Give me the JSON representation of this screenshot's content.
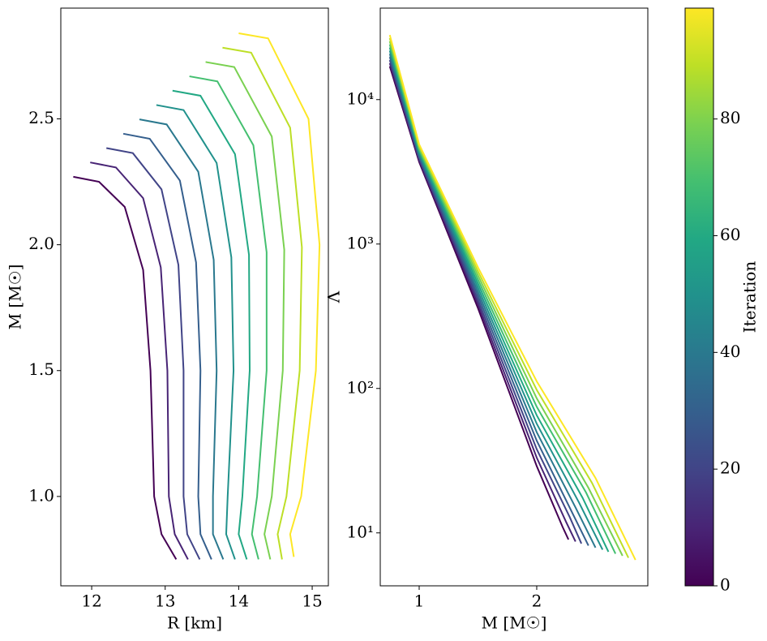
{
  "chart_data": [
    {
      "type": "line",
      "xlabel": "R [km]",
      "ylabel": "M [M☉]",
      "xlim": [
        11.58,
        15.22
      ],
      "ylim": [
        0.645,
        2.94
      ],
      "xticks": [
        12,
        13,
        14,
        15
      ],
      "yticks": [
        {
          "value": 1,
          "label": "1.0"
        },
        {
          "value": 1.5,
          "label": "1.5"
        },
        {
          "value": 2,
          "label": "2.0"
        },
        {
          "value": 2.5,
          "label": "2.5"
        }
      ],
      "series": [
        {
          "color": "#440154",
          "x": [
            13.15,
            12.95,
            12.85,
            12.8,
            12.7,
            12.45,
            12.1,
            11.75
          ],
          "values": [
            0.75,
            0.85,
            1.0,
            1.5,
            1.9,
            2.15,
            2.25,
            2.27
          ]
        },
        {
          "color": "#482475",
          "x": [
            13.31,
            13.13,
            13.05,
            13.03,
            12.94,
            12.7,
            12.33,
            11.98
          ],
          "values": [
            0.75,
            0.85,
            1.0,
            1.5,
            1.91,
            2.185,
            2.307,
            2.327
          ]
        },
        {
          "color": "#414487",
          "x": [
            13.47,
            13.3,
            13.25,
            13.25,
            13.18,
            12.95,
            12.56,
            12.2
          ],
          "values": [
            0.75,
            0.85,
            1.0,
            1.5,
            1.92,
            2.22,
            2.364,
            2.384
          ]
        },
        {
          "color": "#355f8d",
          "x": [
            13.63,
            13.48,
            13.45,
            13.48,
            13.42,
            13.2,
            12.79,
            12.43
          ],
          "values": [
            0.75,
            0.85,
            1.0,
            1.5,
            1.93,
            2.255,
            2.421,
            2.441
          ]
        },
        {
          "color": "#2a788e",
          "x": [
            13.79,
            13.65,
            13.65,
            13.7,
            13.66,
            13.45,
            13.02,
            12.65
          ],
          "values": [
            0.75,
            0.85,
            1.0,
            1.5,
            1.94,
            2.29,
            2.478,
            2.498
          ]
        },
        {
          "color": "#21918c",
          "x": [
            13.95,
            13.83,
            13.85,
            13.93,
            13.9,
            13.7,
            13.25,
            12.88
          ],
          "values": [
            0.75,
            0.85,
            1.0,
            1.5,
            1.95,
            2.325,
            2.535,
            2.555
          ]
        },
        {
          "color": "#22a884",
          "x": [
            14.11,
            14.0,
            14.05,
            14.15,
            14.14,
            13.95,
            13.48,
            13.1
          ],
          "values": [
            0.75,
            0.85,
            1.0,
            1.5,
            1.96,
            2.36,
            2.592,
            2.612
          ]
        },
        {
          "color": "#44bf70",
          "x": [
            14.27,
            14.18,
            14.25,
            14.38,
            14.38,
            14.2,
            13.71,
            13.33
          ],
          "values": [
            0.75,
            0.85,
            1.0,
            1.5,
            1.97,
            2.395,
            2.649,
            2.669
          ]
        },
        {
          "color": "#7ad151",
          "x": [
            14.43,
            14.35,
            14.45,
            14.6,
            14.62,
            14.45,
            13.94,
            13.55
          ],
          "values": [
            0.75,
            0.85,
            1.0,
            1.5,
            1.98,
            2.43,
            2.706,
            2.726
          ]
        },
        {
          "color": "#bddf26",
          "x": [
            14.59,
            14.53,
            14.65,
            14.83,
            14.86,
            14.7,
            14.17,
            13.78
          ],
          "values": [
            0.75,
            0.85,
            1.0,
            1.5,
            1.99,
            2.465,
            2.763,
            2.783
          ]
        },
        {
          "color": "#fde725",
          "x": [
            14.75,
            14.7,
            14.85,
            15.05,
            15.1,
            14.95,
            14.4,
            14.0
          ],
          "values": [
            0.76,
            0.85,
            1.0,
            1.5,
            2.0,
            2.5,
            2.82,
            2.84
          ]
        }
      ]
    },
    {
      "type": "line",
      "xlabel": "M [M☉]",
      "ylabel": "Λ",
      "log_y": true,
      "xlim": [
        0.669,
        2.945
      ],
      "ylim": [
        4.3,
        43000
      ],
      "xticks": [
        1,
        2
      ],
      "yticks": [
        {
          "value": 10,
          "label": "10¹"
        },
        {
          "value": 100,
          "label": "10²"
        },
        {
          "value": 1000,
          "label": "10³"
        },
        {
          "value": 10000,
          "label": "10⁴"
        }
      ],
      "colorbar": {
        "label": "Iteration",
        "lim": [
          0,
          99
        ],
        "ticks": [
          0,
          20,
          40,
          60,
          80
        ]
      },
      "series": [
        {
          "color": "#440154",
          "x": [
            0.75,
            1.0,
            1.5,
            2.0,
            2.22,
            2.27
          ],
          "values": [
            17000,
            3700,
            360,
            29,
            11,
            9.0
          ]
        },
        {
          "color": "#482475",
          "x": [
            0.75,
            1.0,
            1.5,
            2.0,
            2.25,
            2.33
          ],
          "values": [
            17870,
            3805,
            384,
            33.2,
            11.9,
            8.71
          ]
        },
        {
          "color": "#414487",
          "x": [
            0.75,
            1.0,
            1.5,
            2.0,
            2.28,
            2.38
          ],
          "values": [
            18790,
            3914,
            410,
            38.0,
            12.9,
            8.43
          ]
        },
        {
          "color": "#355f8d",
          "x": [
            0.75,
            1.0,
            1.5,
            2.0,
            2.3,
            2.44
          ],
          "values": [
            19750,
            4026,
            438,
            43.5,
            13.9,
            8.16
          ]
        },
        {
          "color": "#2a788e",
          "x": [
            0.75,
            1.0,
            1.5,
            2.0,
            2.33,
            2.5
          ],
          "values": [
            20760,
            4140,
            467,
            49.8,
            15.0,
            7.9
          ]
        },
        {
          "color": "#21918c",
          "x": [
            0.75,
            1.0,
            1.5,
            2.0,
            2.36,
            2.56
          ],
          "values": [
            21820,
            4258,
            498,
            57.0,
            16.2,
            7.65
          ]
        },
        {
          "color": "#22a884",
          "x": [
            0.75,
            1.0,
            1.5,
            2.0,
            2.39,
            2.61
          ],
          "values": [
            22940,
            4380,
            532,
            65.2,
            17.5,
            7.4
          ]
        },
        {
          "color": "#44bf70",
          "x": [
            0.75,
            1.0,
            1.5,
            2.0,
            2.42,
            2.67
          ],
          "values": [
            24110,
            4505,
            568,
            74.7,
            19.0,
            7.17
          ]
        },
        {
          "color": "#7ad151",
          "x": [
            0.75,
            1.0,
            1.5,
            2.0,
            2.44,
            2.73
          ],
          "values": [
            25350,
            4633,
            606,
            85.5,
            20.5,
            6.94
          ]
        },
        {
          "color": "#bddf26",
          "x": [
            0.75,
            1.0,
            1.5,
            2.0,
            2.47,
            2.78
          ],
          "values": [
            26640,
            4765,
            647,
            97.8,
            22.2,
            6.72
          ]
        },
        {
          "color": "#fde725",
          "x": [
            0.75,
            1.0,
            1.5,
            2.0,
            2.5,
            2.84
          ],
          "values": [
            28000,
            4900,
            690,
            112,
            24,
            6.5
          ]
        }
      ]
    }
  ]
}
